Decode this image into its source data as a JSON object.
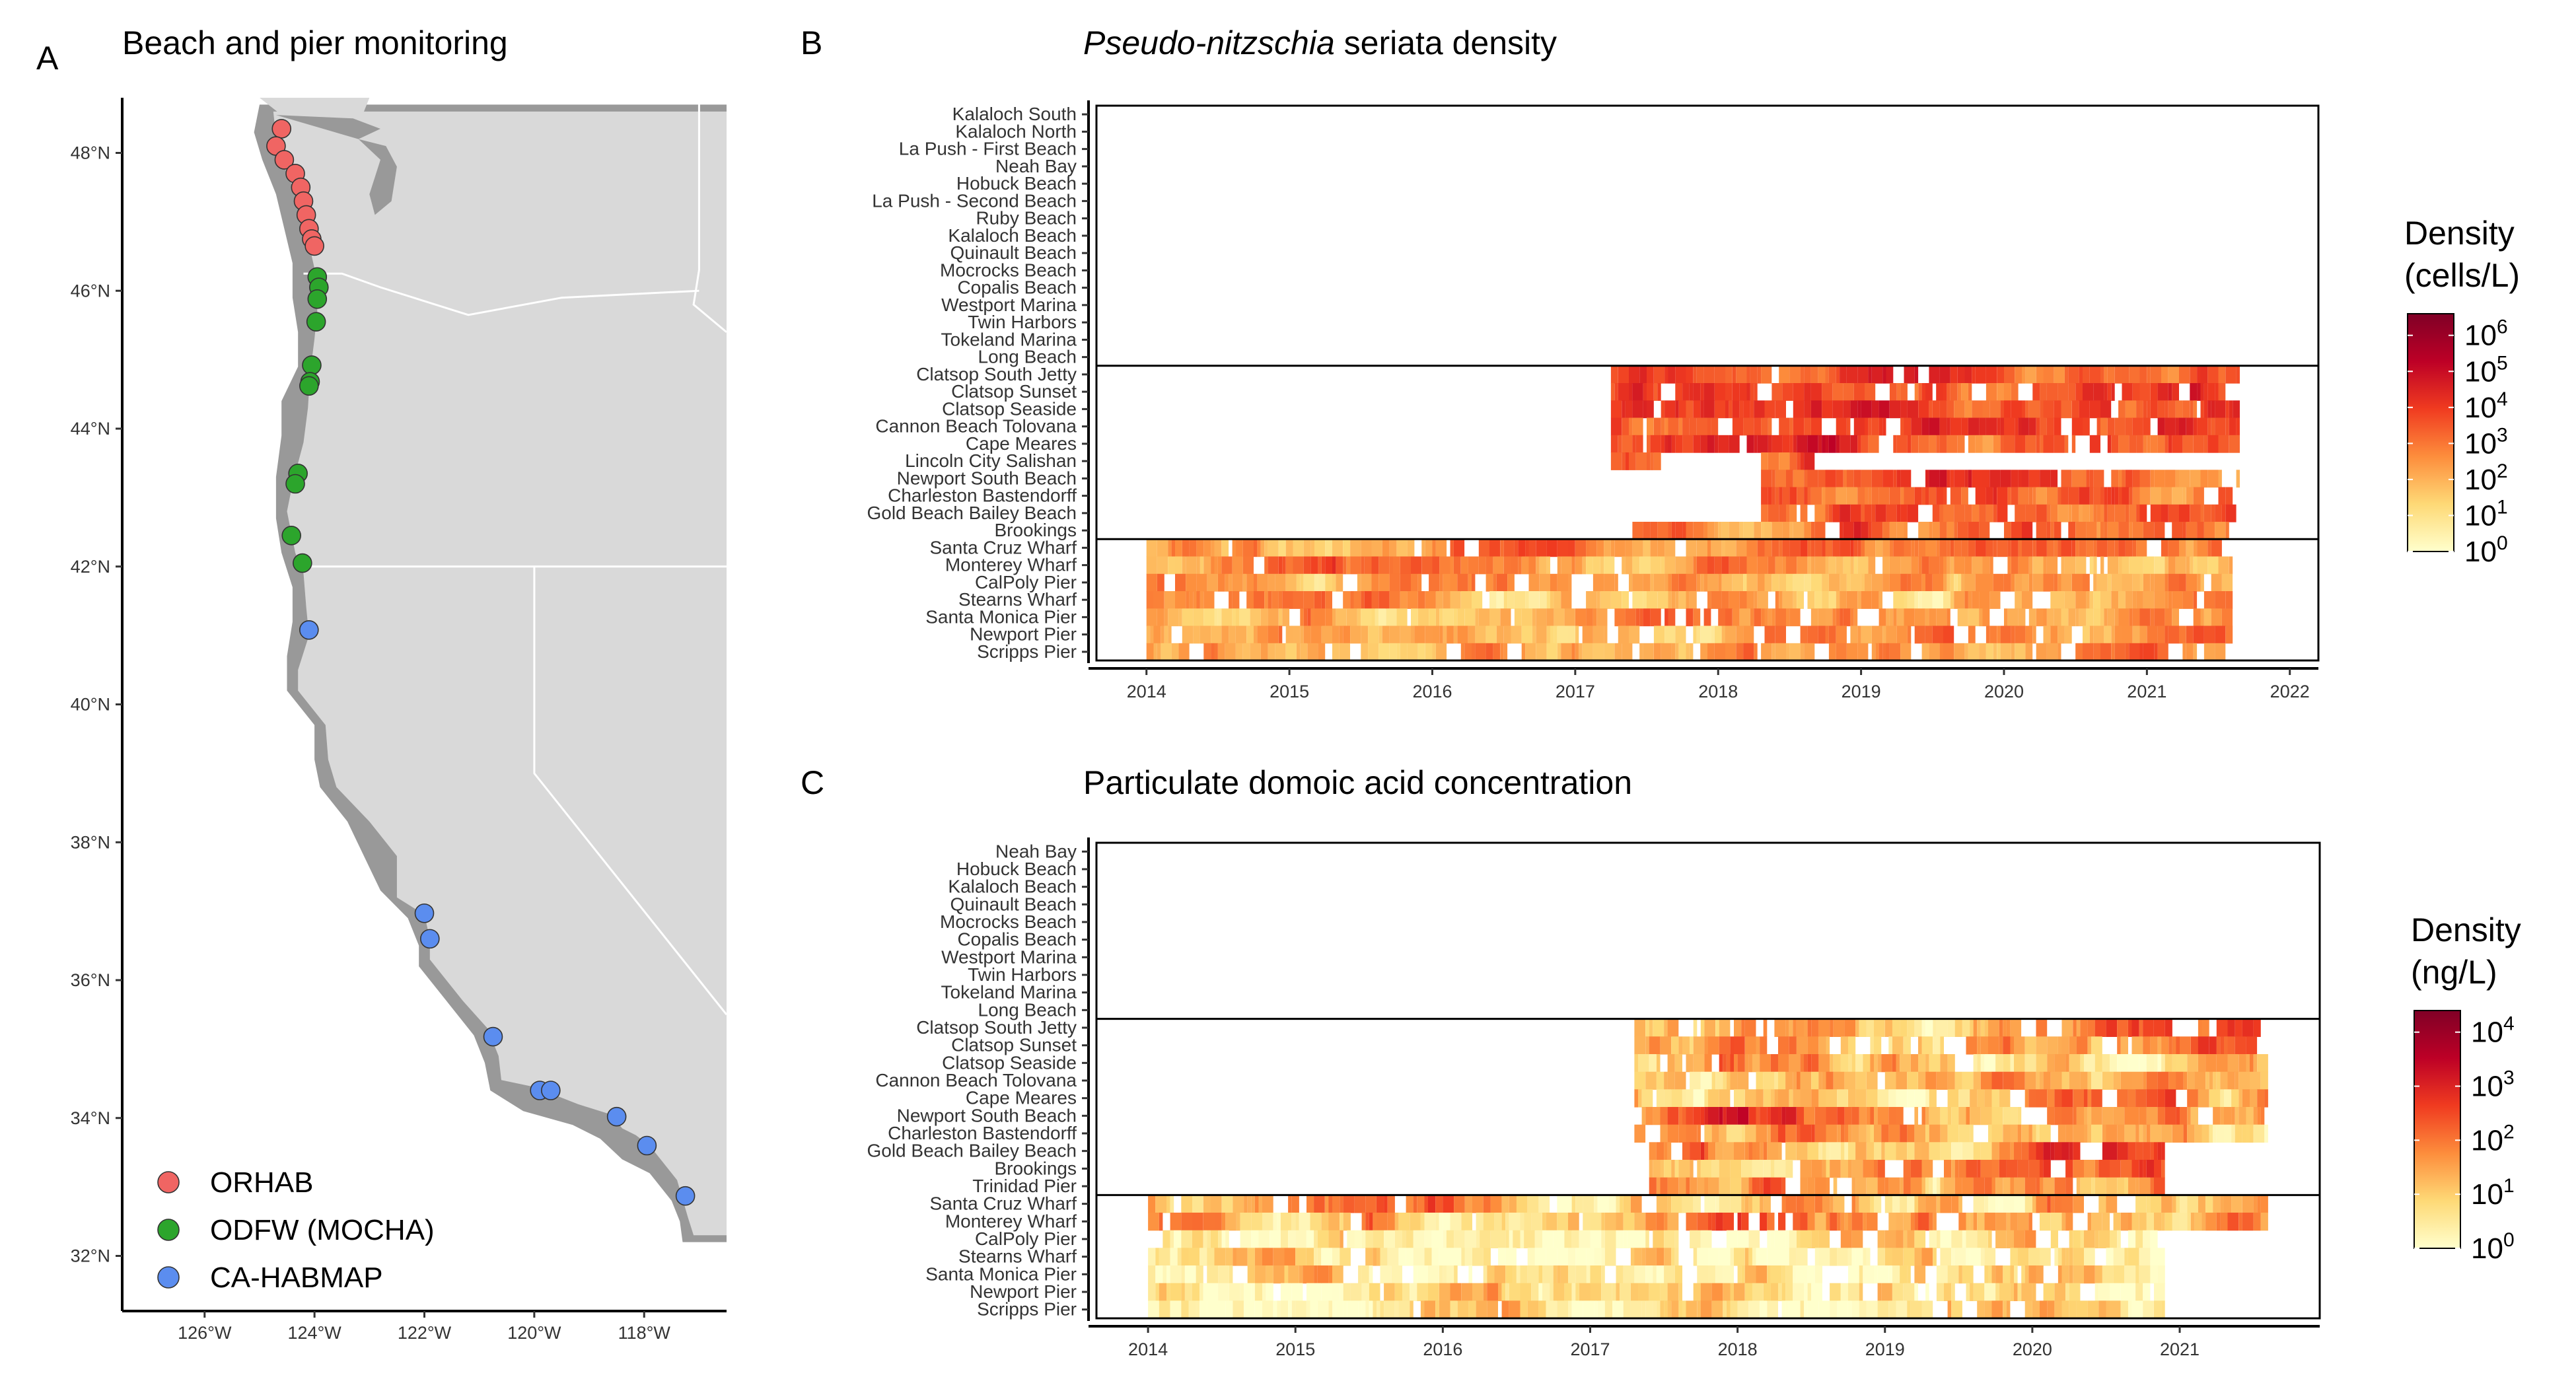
{
  "figure": {
    "panels": {
      "a": {
        "letter": "A",
        "title": "Beach and pier monitoring"
      },
      "b": {
        "letter": "B",
        "title_italic": "Pseudo-nitzschia",
        "title_rest": " seriata density"
      },
      "c": {
        "letter": "C",
        "title": "Particulate domoic acid concentration"
      }
    }
  },
  "colors": {
    "orhab": "#f06563",
    "odfw": "#2ca52c",
    "cahabmap": "#5b8def",
    "land_bg": "#d9d9d9",
    "coast": "#8c8c8c",
    "heat_low": "#ffffcc",
    "heat_mid": "#fd8d3c",
    "heat_high": "#800026"
  },
  "chart_data": [
    {
      "type": "scatter",
      "panel": "A",
      "title": "Beach and pier monitoring",
      "xlim": [
        -127.5,
        -116.5
      ],
      "ylim": [
        31.2,
        48.8
      ],
      "x_ticks": [
        "126°W",
        "124°W",
        "122°W",
        "120°W",
        "118°W"
      ],
      "x_tick_values": [
        -126,
        -124,
        -122,
        -120,
        -118
      ],
      "y_ticks": [
        "32°N",
        "34°N",
        "36°N",
        "38°N",
        "40°N",
        "42°N",
        "44°N",
        "46°N",
        "48°N"
      ],
      "y_tick_values": [
        32,
        34,
        36,
        38,
        40,
        42,
        44,
        46,
        48
      ],
      "legend": {
        "position": "bottom-left",
        "entries": [
          "ORHAB",
          "ODFW (MOCHA)",
          "CA-HABMAP"
        ]
      },
      "series": [
        {
          "name": "ORHAB",
          "points": [
            [
              -124.6,
              48.35
            ],
            [
              -124.7,
              48.1
            ],
            [
              -124.55,
              47.9
            ],
            [
              -124.35,
              47.7
            ],
            [
              -124.25,
              47.5
            ],
            [
              -124.2,
              47.3
            ],
            [
              -124.15,
              47.1
            ],
            [
              -124.1,
              46.9
            ],
            [
              -124.05,
              46.75
            ],
            [
              -124.0,
              46.65
            ]
          ]
        },
        {
          "name": "ODFW (MOCHA)",
          "points": [
            [
              -123.95,
              46.2
            ],
            [
              -123.92,
              46.05
            ],
            [
              -123.95,
              45.88
            ],
            [
              -123.97,
              45.55
            ],
            [
              -124.05,
              44.92
            ],
            [
              -124.08,
              44.68
            ],
            [
              -124.1,
              44.62
            ],
            [
              -124.3,
              43.35
            ],
            [
              -124.35,
              43.2
            ],
            [
              -124.42,
              42.45
            ],
            [
              -124.22,
              42.05
            ]
          ]
        },
        {
          "name": "CA-HABMAP",
          "points": [
            [
              -124.1,
              41.08
            ],
            [
              -122.0,
              36.97
            ],
            [
              -121.9,
              36.6
            ],
            [
              -120.75,
              35.18
            ],
            [
              -119.9,
              34.4
            ],
            [
              -119.7,
              34.4
            ],
            [
              -118.5,
              34.02
            ],
            [
              -117.95,
              33.6
            ],
            [
              -117.25,
              32.87
            ]
          ]
        }
      ]
    },
    {
      "type": "heatmap",
      "panel": "B",
      "title": "Pseudo-nitzschia seriata density",
      "x_ticks": [
        "2014",
        "2015",
        "2016",
        "2017",
        "2018",
        "2019",
        "2020",
        "2021",
        "2022"
      ],
      "xlim": [
        2013.65,
        2022.2
      ],
      "sites": [
        "Kalaloch South",
        "Kalaloch North",
        "La Push - First Beach",
        "Neah Bay",
        "Hobuck Beach",
        "La Push - Second Beach",
        "Ruby Beach",
        "Kalaloch Beach",
        "Quinault Beach",
        "Mocrocks Beach",
        "Copalis Beach",
        "Westport Marina",
        "Twin Harbors",
        "Tokeland Marina",
        "Long Beach",
        "Clatsop South Jetty",
        "Clatsop Sunset",
        "Clatsop Seaside",
        "Cannon Beach Tolovana",
        "Cape Meares",
        "Lincoln City Salishan",
        "Newport South Beach",
        "Charleston Bastendorff",
        "Gold Beach Bailey Beach",
        "Brookings",
        "Santa Cruz Wharf",
        "Monterey Wharf",
        "CalPoly Pier",
        "Stearns Wharf",
        "Santa Monica Pier",
        "Newport Pier",
        "Scripps Pier"
      ],
      "group_separators_after_index": [
        14,
        24
      ],
      "colorbar": {
        "title_line1": "Density",
        "title_line2": "(cells/L)",
        "min_exp": 0,
        "max_exp": 6.6,
        "tick_exponents": [
          0,
          1,
          2,
          3,
          4,
          5,
          6
        ]
      },
      "coverage": [
        {
          "sites": [
            15,
            16,
            17,
            18,
            19
          ],
          "start": 2017.25,
          "end": 2021.65,
          "mean_log": 3.8
        },
        {
          "sites": [
            20
          ],
          "start": 2017.25,
          "end": 2017.6,
          "mean_log": 3.0
        },
        {
          "sites": [
            20
          ],
          "start": 2018.3,
          "end": 2018.7,
          "mean_log": 3.2
        },
        {
          "sites": [
            21,
            22,
            23
          ],
          "start": 2018.3,
          "end": 2021.65,
          "mean_log": 3.3
        },
        {
          "sites": [
            24
          ],
          "start": 2017.4,
          "end": 2021.6,
          "mean_log": 3.0
        },
        {
          "sites": [
            25,
            26,
            27,
            28,
            29,
            30,
            31
          ],
          "start": 2014.0,
          "end": 2021.6,
          "mean_log": 2.4
        }
      ]
    },
    {
      "type": "heatmap",
      "panel": "C",
      "title": "Particulate domoic acid concentration",
      "x_ticks": [
        "2014",
        "2015",
        "2016",
        "2017",
        "2018",
        "2019",
        "2020",
        "2021"
      ],
      "xlim": [
        2013.65,
        2021.95
      ],
      "sites": [
        "Neah Bay",
        "Hobuck Beach",
        "Kalaloch Beach",
        "Quinault Beach",
        "Mocrocks Beach",
        "Copalis Beach",
        "Westport Marina",
        "Twin Harbors",
        "Tokeland Marina",
        "Long Beach",
        "Clatsop South Jetty",
        "Clatsop Sunset",
        "Clatsop Seaside",
        "Cannon Beach Tolovana",
        "Cape Meares",
        "Newport South Beach",
        "Charleston Bastendorff",
        "Gold Beach Bailey Beach",
        "Brookings",
        "Trinidad Pier",
        "Santa Cruz Wharf",
        "Monterey Wharf",
        "CalPoly Pier",
        "Stearns Wharf",
        "Santa Monica Pier",
        "Newport Pier",
        "Scripps Pier"
      ],
      "group_separators_after_index": [
        9,
        19
      ],
      "colorbar": {
        "title_line1": "Density",
        "title_line2": "(ng/L)",
        "min_exp": 0,
        "max_exp": 4.4,
        "tick_exponents": [
          0,
          1,
          2,
          3,
          4
        ]
      },
      "coverage": [
        {
          "sites": [
            10,
            11,
            12,
            13,
            14,
            15,
            16
          ],
          "start": 2017.3,
          "end": 2021.6,
          "mean_log": 1.4
        },
        {
          "sites": [
            17,
            18,
            19
          ],
          "start": 2017.4,
          "end": 2020.9,
          "mean_log": 1.6
        },
        {
          "sites": [
            20,
            21
          ],
          "start": 2014.0,
          "end": 2021.6,
          "mean_log": 1.5
        },
        {
          "sites": [
            22,
            23,
            24,
            25,
            26
          ],
          "start": 2014.0,
          "end": 2020.9,
          "mean_log": 0.4
        }
      ]
    }
  ]
}
